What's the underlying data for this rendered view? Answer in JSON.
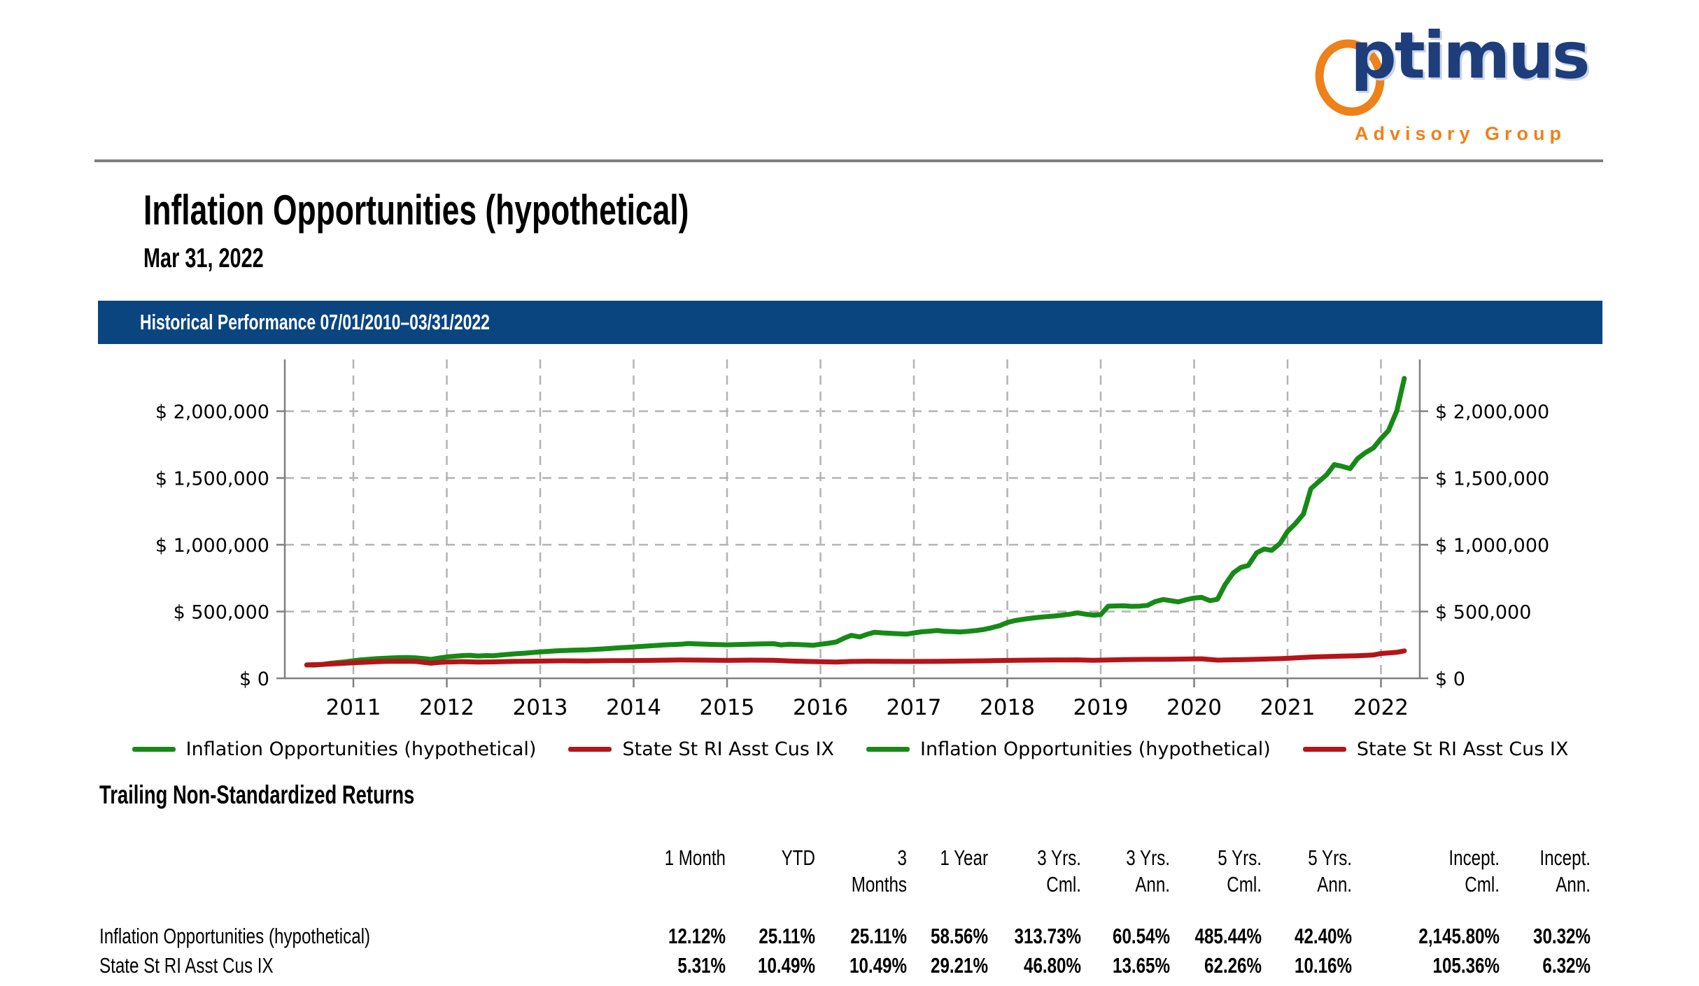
{
  "logo": {
    "o": "O",
    "word": "ptimus",
    "subtitle": "Advisory Group"
  },
  "header": {
    "title": "Inflation Opportunities (hypothetical)",
    "date": "Mar 31, 2022"
  },
  "banner": {
    "text": "Historical Performance 07/01/2010–03/31/2022"
  },
  "colors": {
    "banner_blue": "#0a4580",
    "series_green": "#168a16",
    "series_red": "#b51418",
    "axis_gray": "#808080",
    "grid_gray": "#b3b3b3",
    "logo_orange": "#ee8119",
    "logo_navy": "#1e3d7b"
  },
  "chart_data": {
    "type": "line",
    "title": "Historical Performance 07/01/2010–03/31/2022",
    "xlabel": "",
    "ylabel": "",
    "xlim": [
      2010.27,
      2022.41
    ],
    "ylim": [
      0,
      2380000
    ],
    "grid": "dashed",
    "legend_position": "bottom",
    "x_ticks": [
      2011,
      2012,
      2013,
      2014,
      2015,
      2016,
      2017,
      2018,
      2019,
      2020,
      2021,
      2022
    ],
    "y_ticks": [
      {
        "value": 0,
        "label": "$ 0"
      },
      {
        "value": 500000,
        "label": "$ 500,000"
      },
      {
        "value": 1000000,
        "label": "$ 1,000,000"
      },
      {
        "value": 1500000,
        "label": "$ 1,500,000"
      },
      {
        "value": 2000000,
        "label": "$ 2,000,000"
      }
    ],
    "series": [
      {
        "name": "Inflation Opportunities (hypothetical)",
        "color": "#168a16",
        "x": [
          2010.5,
          2010.58,
          2010.67,
          2010.75,
          2010.83,
          2010.92,
          2011.0,
          2011.08,
          2011.17,
          2011.25,
          2011.33,
          2011.42,
          2011.5,
          2011.58,
          2011.67,
          2011.75,
          2011.83,
          2011.92,
          2012.0,
          2012.08,
          2012.17,
          2012.25,
          2012.33,
          2012.42,
          2012.5,
          2012.58,
          2012.67,
          2012.75,
          2012.83,
          2012.92,
          2013.0,
          2013.17,
          2013.33,
          2013.5,
          2013.67,
          2013.83,
          2014.0,
          2014.17,
          2014.33,
          2014.5,
          2014.58,
          2014.67,
          2014.83,
          2015.0,
          2015.17,
          2015.33,
          2015.5,
          2015.58,
          2015.67,
          2015.83,
          2015.92,
          2016.0,
          2016.08,
          2016.17,
          2016.25,
          2016.33,
          2016.42,
          2016.5,
          2016.58,
          2016.67,
          2016.75,
          2016.83,
          2016.92,
          2017.0,
          2017.08,
          2017.17,
          2017.25,
          2017.33,
          2017.42,
          2017.5,
          2017.58,
          2017.67,
          2017.75,
          2017.83,
          2017.92,
          2018.0,
          2018.08,
          2018.17,
          2018.25,
          2018.33,
          2018.42,
          2018.5,
          2018.58,
          2018.67,
          2018.75,
          2018.83,
          2018.92,
          2019.0,
          2019.08,
          2019.17,
          2019.25,
          2019.33,
          2019.42,
          2019.5,
          2019.58,
          2019.67,
          2019.75,
          2019.83,
          2019.92,
          2020.0,
          2020.08,
          2020.17,
          2020.25,
          2020.33,
          2020.42,
          2020.5,
          2020.58,
          2020.67,
          2020.75,
          2020.83,
          2020.92,
          2021.0,
          2021.08,
          2021.17,
          2021.25,
          2021.33,
          2021.42,
          2021.5,
          2021.58,
          2021.67,
          2021.75,
          2021.83,
          2021.92,
          2022.0,
          2022.08,
          2022.17,
          2022.25
        ],
        "values": [
          100000,
          99000,
          104000,
          112000,
          118000,
          124000,
          132000,
          138000,
          143000,
          147000,
          150000,
          153000,
          155000,
          156000,
          153000,
          148000,
          142000,
          152000,
          160000,
          165000,
          170000,
          172000,
          167000,
          170000,
          169000,
          175000,
          180000,
          185000,
          188000,
          193000,
          198000,
          205000,
          210000,
          213000,
          220000,
          228000,
          235000,
          243000,
          250000,
          255000,
          260000,
          258000,
          254000,
          251000,
          254000,
          257000,
          259000,
          250000,
          255000,
          251000,
          247000,
          255000,
          262000,
          272000,
          300000,
          322000,
          310000,
          330000,
          345000,
          340000,
          337000,
          334000,
          331000,
          340000,
          348000,
          353000,
          358000,
          352000,
          349000,
          347000,
          352000,
          358000,
          366000,
          378000,
          395000,
          418000,
          432000,
          442000,
          450000,
          456000,
          462000,
          466000,
          472000,
          480000,
          490000,
          481000,
          473000,
          477000,
          540000,
          542000,
          543000,
          539000,
          541000,
          546000,
          574000,
          590000,
          581000,
          572000,
          589000,
          601000,
          606000,
          581000,
          592000,
          700000,
          790000,
          830000,
          845000,
          940000,
          968000,
          958000,
          1010000,
          1100000,
          1155000,
          1230000,
          1420000,
          1470000,
          1525000,
          1600000,
          1588000,
          1570000,
          1645000,
          1688000,
          1725000,
          1795000,
          1855000,
          2003000,
          2245800
        ]
      },
      {
        "name": "State St RI Asst Cus IX",
        "color": "#b51418",
        "x": [
          2010.5,
          2010.67,
          2010.83,
          2011.0,
          2011.17,
          2011.33,
          2011.5,
          2011.67,
          2011.75,
          2011.83,
          2011.92,
          2012.0,
          2012.17,
          2012.33,
          2012.5,
          2012.67,
          2012.83,
          2013.0,
          2013.25,
          2013.5,
          2013.75,
          2014.0,
          2014.25,
          2014.5,
          2014.75,
          2015.0,
          2015.25,
          2015.5,
          2015.67,
          2015.83,
          2016.0,
          2016.17,
          2016.33,
          2016.5,
          2016.67,
          2016.83,
          2017.0,
          2017.25,
          2017.5,
          2017.75,
          2018.0,
          2018.25,
          2018.5,
          2018.75,
          2018.92,
          2019.0,
          2019.25,
          2019.5,
          2019.75,
          2020.0,
          2020.08,
          2020.25,
          2020.42,
          2020.58,
          2020.75,
          2020.92,
          2021.0,
          2021.25,
          2021.42,
          2021.58,
          2021.75,
          2021.92,
          2022.0,
          2022.08,
          2022.17,
          2022.25
        ],
        "values": [
          100000,
          104000,
          110000,
          116000,
          122000,
          126000,
          128000,
          126000,
          120000,
          113000,
          119000,
          122000,
          125000,
          122000,
          123000,
          126000,
          128000,
          129000,
          131000,
          130000,
          132000,
          133000,
          135000,
          137000,
          136000,
          134000,
          136000,
          135000,
          130000,
          127000,
          124000,
          122000,
          126000,
          128000,
          127000,
          126000,
          126000,
          127000,
          129000,
          131000,
          134000,
          136000,
          137000,
          138000,
          135000,
          136000,
          140000,
          142000,
          143000,
          145000,
          146000,
          136000,
          139000,
          141000,
          144000,
          147000,
          150000,
          159000,
          163000,
          166000,
          169000,
          175000,
          186000,
          190000,
          195000,
          205360
        ]
      }
    ]
  },
  "legend": {
    "items": [
      {
        "label": "Inflation Opportunities (hypothetical)",
        "color": "#168a16"
      },
      {
        "label": "State St RI Asst Cus IX",
        "color": "#b51418"
      },
      {
        "label": "Inflation Opportunities (hypothetical)",
        "color": "#168a16"
      },
      {
        "label": "State St RI Asst Cus IX",
        "color": "#b51418"
      }
    ]
  },
  "returns_table": {
    "title": "Trailing Non-Standardized Returns",
    "columns": [
      {
        "line1": "1 Month",
        "line2": ""
      },
      {
        "line1": "YTD",
        "line2": ""
      },
      {
        "line1": "3",
        "line2": "Months"
      },
      {
        "line1": "1 Year",
        "line2": ""
      },
      {
        "line1": "3 Yrs.",
        "line2": "Cml."
      },
      {
        "line1": "3 Yrs.",
        "line2": "Ann."
      },
      {
        "line1": "5 Yrs.",
        "line2": "Cml."
      },
      {
        "line1": "5 Yrs.",
        "line2": "Ann."
      },
      {
        "line1": "Incept.",
        "line2": "Cml."
      },
      {
        "line1": "Incept.",
        "line2": "Ann."
      }
    ],
    "rows": [
      {
        "label": "Inflation Opportunities (hypothetical)",
        "values": [
          "12.12%",
          "25.11%",
          "25.11%",
          "58.56%",
          "313.73%",
          "60.54%",
          "485.44%",
          "42.40%",
          "2,145.80%",
          "30.32%"
        ]
      },
      {
        "label": "State St RI Asst Cus IX",
        "values": [
          "5.31%",
          "10.49%",
          "10.49%",
          "29.21%",
          "46.80%",
          "13.65%",
          "62.26%",
          "10.16%",
          "105.36%",
          "6.32%"
        ]
      }
    ]
  }
}
